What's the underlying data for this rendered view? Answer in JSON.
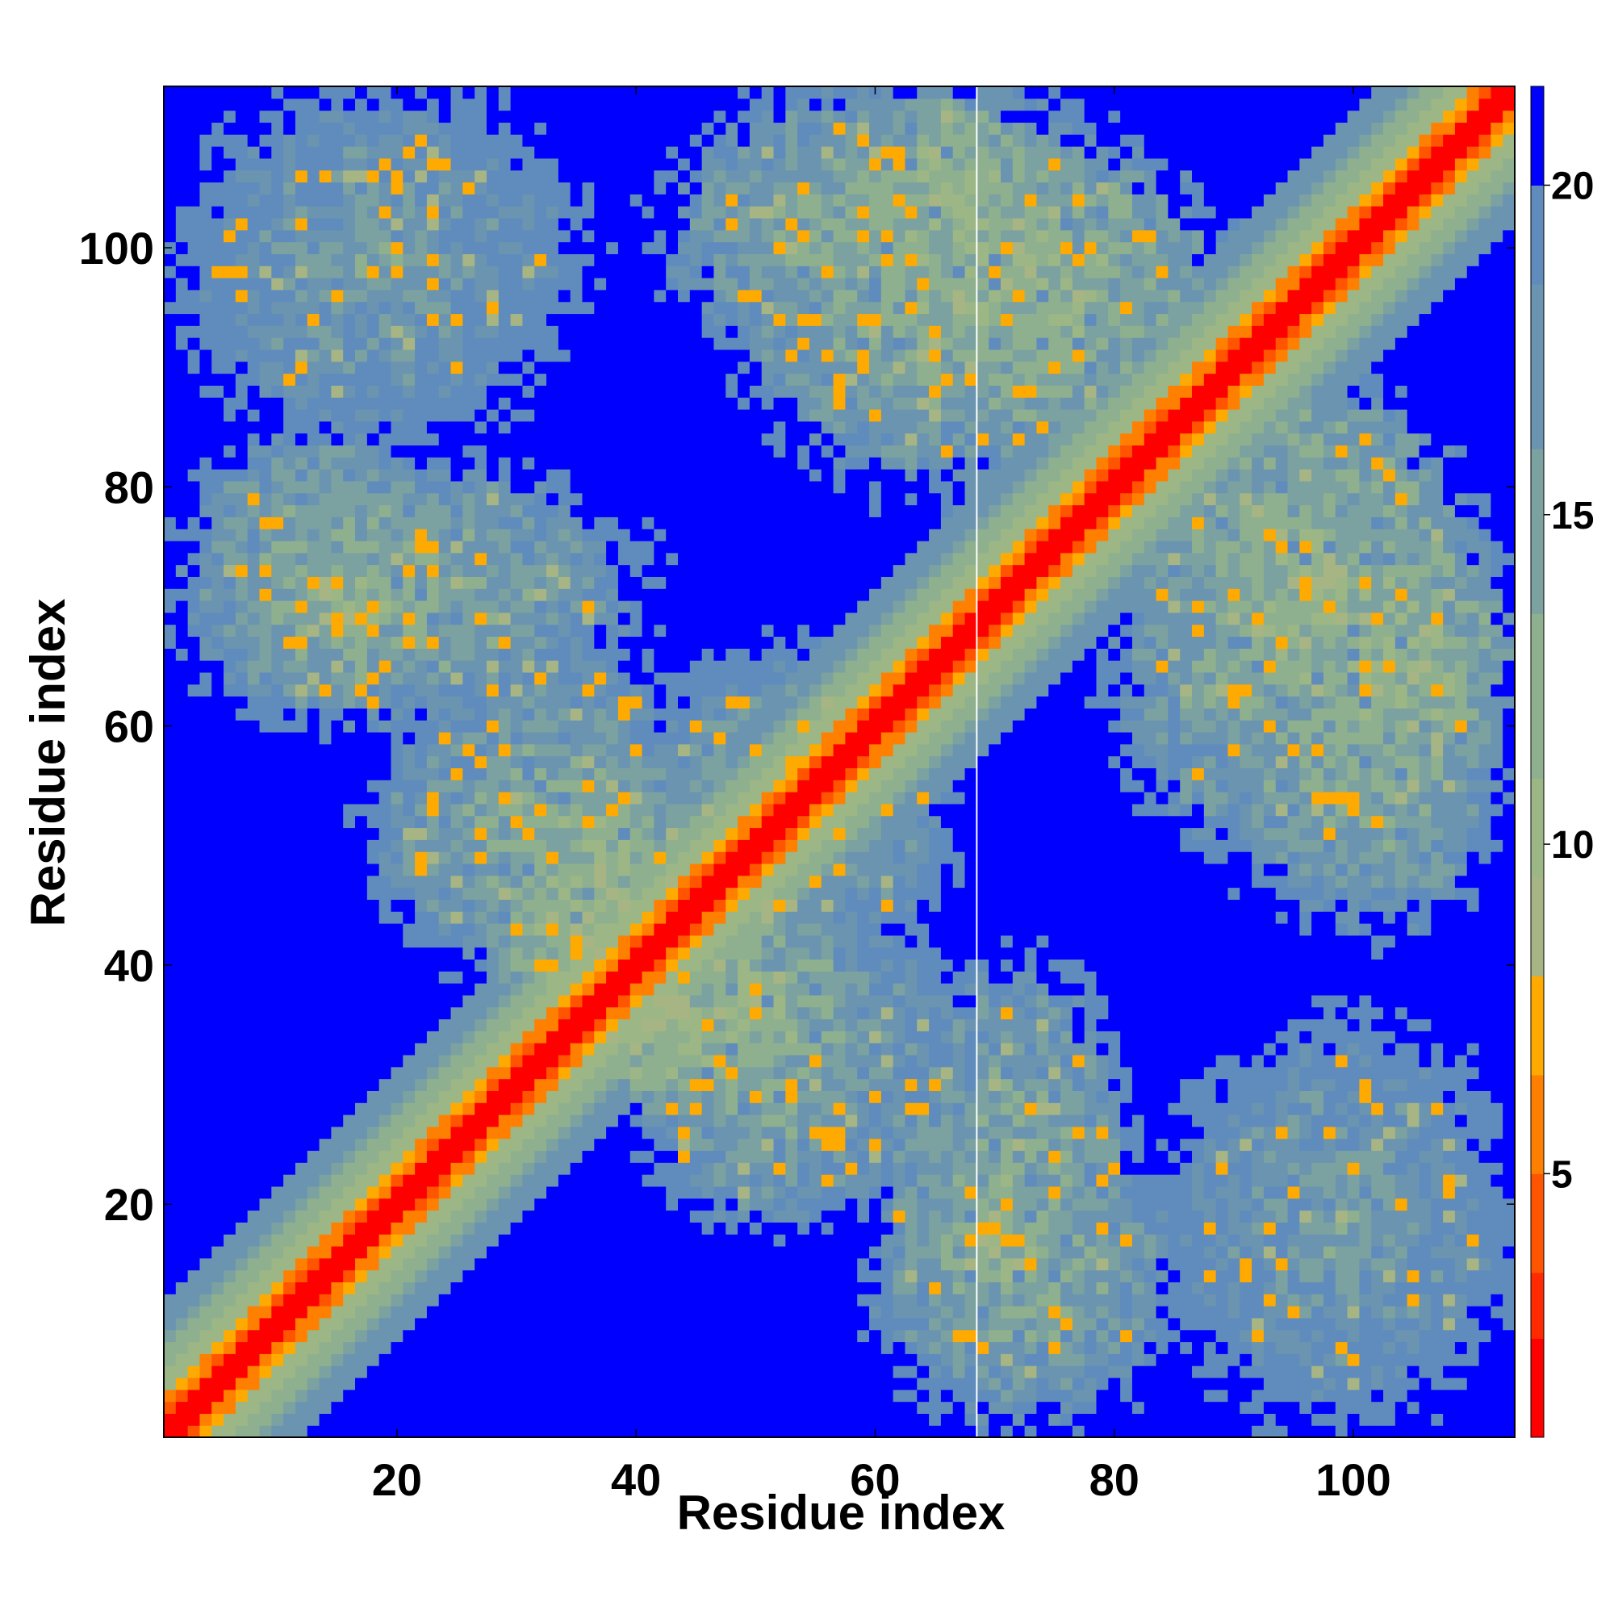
{
  "chart_data": {
    "type": "heatmap",
    "title": "",
    "xlabel": "Residue index",
    "ylabel": "Residue index",
    "n_residues": 113,
    "xlim": [
      1,
      113
    ],
    "ylim": [
      1,
      113
    ],
    "x_ticks": [
      20,
      40,
      60,
      80,
      100
    ],
    "y_ticks": [
      20,
      40,
      60,
      80,
      100
    ],
    "colorbar": {
      "ticks": [
        5,
        10,
        15,
        20
      ],
      "range": [
        1,
        21.5
      ],
      "levels": [
        {
          "max": 2.5,
          "color": "#ff0000"
        },
        {
          "max": 3.5,
          "color": "#ff2a00"
        },
        {
          "max": 5.0,
          "color": "#ff5500"
        },
        {
          "max": 6.5,
          "color": "#ff8000"
        },
        {
          "max": 8.0,
          "color": "#ffaa00"
        },
        {
          "max": 9.5,
          "color": "#a7b584"
        },
        {
          "max": 11.0,
          "color": "#9cb785"
        },
        {
          "max": 13.5,
          "color": "#8fb08f"
        },
        {
          "max": 16.0,
          "color": "#7ba2a0"
        },
        {
          "max": 18.5,
          "color": "#6b94b0"
        },
        {
          "max": 20.0,
          "color": "#5f8cbc"
        },
        {
          "max": 21.5,
          "color": "#0000ff"
        }
      ]
    },
    "cutoff_line_x": 68.5,
    "diagonal_band": [
      {
        "max_offset": 1,
        "value": 1.5
      },
      {
        "max_offset": 2,
        "value": 4.5
      },
      {
        "max_offset": 3,
        "value": 7.0
      },
      {
        "max_offset": 5,
        "value": 10.0
      },
      {
        "max_offset": 7,
        "value": 12.5
      },
      {
        "max_offset": 8,
        "value": 15.0
      },
      {
        "max_offset": 11,
        "value": 17.5
      }
    ],
    "contact_regions": [
      {
        "name": "upper-left",
        "x": [
          3,
          35
        ],
        "y": [
          86,
          113
        ],
        "core_value": 15.5
      },
      {
        "name": "left-arm",
        "x": [
          1,
          40
        ],
        "y": [
          60,
          82
        ],
        "core_value": 13.5
      },
      {
        "name": "left-lower-arm",
        "x": [
          18,
          42
        ],
        "y": [
          40,
          62
        ],
        "core_value": 14.0
      },
      {
        "name": "center-cross-left",
        "x": [
          28,
          45
        ],
        "y": [
          36,
          50
        ],
        "core_value": 10.0
      },
      {
        "name": "center-cross-right",
        "x": [
          40,
          58
        ],
        "y": [
          28,
          45
        ],
        "core_value": 11.0
      },
      {
        "name": "center-upper",
        "x": [
          40,
          65
        ],
        "y": [
          45,
          66
        ],
        "core_value": 15.0
      },
      {
        "name": "center-lower",
        "x": [
          45,
          68
        ],
        "y": [
          20,
          44
        ],
        "core_value": 15.0
      },
      {
        "name": "top-mid",
        "x": [
          43,
          78
        ],
        "y": [
          90,
          113
        ],
        "core_value": 13.0
      },
      {
        "name": "top-mid-inner",
        "x": [
          55,
          88
        ],
        "y": [
          84,
          110
        ],
        "core_value": 11.5
      },
      {
        "name": "right-arm",
        "x": [
          80,
          113
        ],
        "y": [
          48,
          85
        ],
        "core_value": 13.0
      },
      {
        "name": "right-arm-inner",
        "x": [
          95,
          113
        ],
        "y": [
          55,
          76
        ],
        "core_value": 11.0
      },
      {
        "name": "bottom-mid",
        "x": [
          60,
          85
        ],
        "y": [
          2,
          26
        ],
        "core_value": 13.5
      },
      {
        "name": "bottom-mid-inner",
        "x": [
          62,
          80
        ],
        "y": [
          8,
          25
        ],
        "core_value": 12.0
      },
      {
        "name": "lower-right",
        "x": [
          84,
          113
        ],
        "y": [
          2,
          34
        ],
        "core_value": 15.5
      }
    ]
  }
}
